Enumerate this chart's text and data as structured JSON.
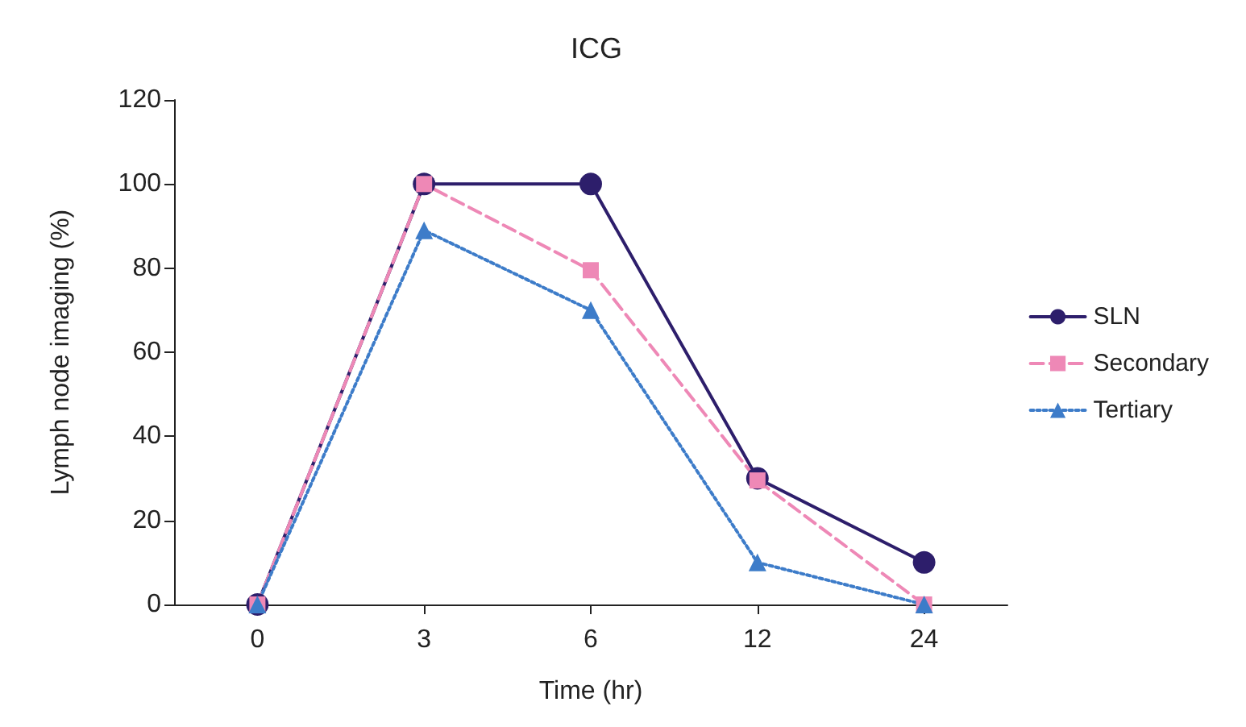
{
  "chart_data": {
    "type": "line",
    "title": "ICG",
    "xlabel": "Time (hr)",
    "ylabel": "Lymph node imaging (%)",
    "categories": [
      "0",
      "3",
      "6",
      "12",
      "24"
    ],
    "series": [
      {
        "name": "SLN",
        "color": "#2d1e6b",
        "values": [
          0,
          100,
          100,
          30,
          10
        ],
        "marker": "circle",
        "line_style": "solid"
      },
      {
        "name": "Secondary",
        "color": "#ee88b6",
        "values": [
          0,
          100,
          79.5,
          29.5,
          0
        ],
        "marker": "square",
        "line_style": "dashed"
      },
      {
        "name": "Tertiary",
        "color": "#3d7cc9",
        "values": [
          0,
          89,
          70,
          10,
          0
        ],
        "marker": "triangle",
        "line_style": "dotted"
      }
    ],
    "ylim": [
      0,
      120
    ],
    "yticks": [
      0,
      20,
      40,
      60,
      80,
      100,
      120
    ],
    "grid": false,
    "legend": "right"
  }
}
